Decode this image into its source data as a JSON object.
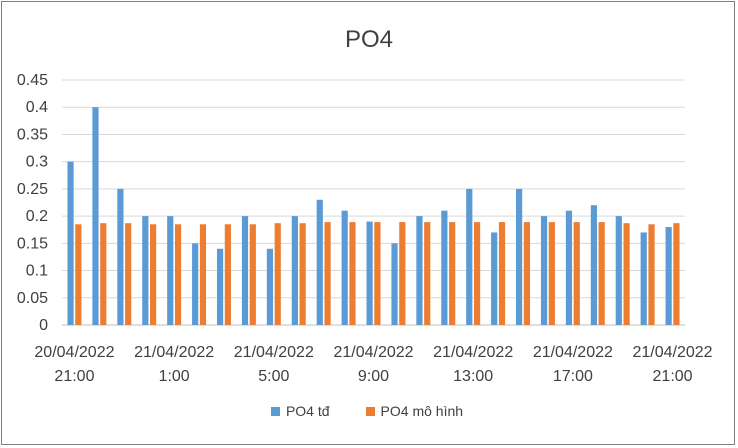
{
  "chart_data": {
    "type": "bar",
    "title": "PO4",
    "xlabel": "",
    "ylabel": "",
    "ylim": [
      0,
      0.45
    ],
    "y_ticks": [
      "0",
      "0.05",
      "0.1",
      "0.15",
      "0.2",
      "0.25",
      "0.3",
      "0.35",
      "0.4",
      "0.45"
    ],
    "grid": true,
    "legend_position": "bottom",
    "categories": [
      "20/04/2022 21:00",
      "20/04/2022 22:00",
      "20/04/2022 23:00",
      "21/04/2022 0:00",
      "21/04/2022 1:00",
      "21/04/2022 2:00",
      "21/04/2022 3:00",
      "21/04/2022 4:00",
      "21/04/2022 5:00",
      "21/04/2022 6:00",
      "21/04/2022 7:00",
      "21/04/2022 8:00",
      "21/04/2022 9:00",
      "21/04/2022 10:00",
      "21/04/2022 11:00",
      "21/04/2022 12:00",
      "21/04/2022 13:00",
      "21/04/2022 14:00",
      "21/04/2022 15:00",
      "21/04/2022 16:00",
      "21/04/2022 17:00",
      "21/04/2022 18:00",
      "21/04/2022 19:00",
      "21/04/2022 20:00",
      "21/04/2022 21:00"
    ],
    "x_tick_labels": [
      {
        "index": 0,
        "line1": "20/04/2022",
        "line2": "21:00"
      },
      {
        "index": 4,
        "line1": "21/04/2022",
        "line2": "1:00"
      },
      {
        "index": 8,
        "line1": "21/04/2022",
        "line2": "5:00"
      },
      {
        "index": 12,
        "line1": "21/04/2022",
        "line2": "9:00"
      },
      {
        "index": 16,
        "line1": "21/04/2022",
        "line2": "13:00"
      },
      {
        "index": 20,
        "line1": "21/04/2022",
        "line2": "17:00"
      },
      {
        "index": 24,
        "line1": "21/04/2022",
        "line2": "21:00"
      }
    ],
    "series": [
      {
        "name": "PO4 tđ",
        "color": "#5b9bd5",
        "values": [
          0.3,
          0.4,
          0.25,
          0.2,
          0.2,
          0.15,
          0.14,
          0.2,
          0.14,
          0.2,
          0.23,
          0.21,
          0.19,
          0.15,
          0.2,
          0.21,
          0.25,
          0.17,
          0.25,
          0.2,
          0.21,
          0.22,
          0.2,
          0.17,
          0.18
        ]
      },
      {
        "name": "PO4 mô hình",
        "color": "#ed7d31",
        "values": [
          0.185,
          0.187,
          0.187,
          0.185,
          0.185,
          0.185,
          0.185,
          0.185,
          0.187,
          0.187,
          0.189,
          0.189,
          0.189,
          0.189,
          0.189,
          0.189,
          0.189,
          0.189,
          0.189,
          0.189,
          0.189,
          0.189,
          0.187,
          0.185,
          0.187
        ]
      }
    ]
  }
}
